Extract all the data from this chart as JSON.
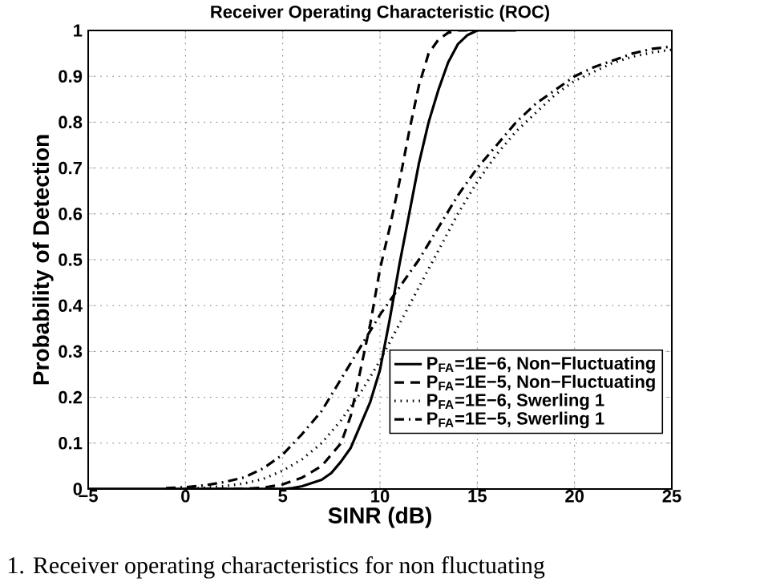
{
  "chart_data": {
    "type": "line",
    "title": "Receiver Operating Characteristic (ROC)",
    "xlabel": "SINR (dB)",
    "ylabel": "Probability of Detection",
    "xlim": [
      -5,
      25
    ],
    "xticks": [
      {
        "value": -5,
        "label": "−5"
      },
      0,
      5,
      10,
      15,
      20,
      25
    ],
    "ylim": [
      0,
      1
    ],
    "yticks": [
      0,
      0.1,
      0.2,
      0.3,
      0.4,
      0.5,
      0.6,
      0.7,
      0.8,
      0.9,
      1
    ],
    "grid": true,
    "legend": "bottom right",
    "annotations": [
      "1.   Receiver operating characteristics for non fluctuating"
    ],
    "series": [
      {
        "name": "P$_{FA}$=1E−6, Non−Fluctuating",
        "color": "#000000",
        "line_style": "solid",
        "x": [
          -5,
          0,
          5,
          5.5,
          6,
          7,
          7.5,
          8,
          8.5,
          9,
          9.5,
          10,
          10.5,
          11,
          11.5,
          12,
          12.5,
          13,
          13.5,
          14,
          14.5,
          15,
          16,
          17
        ],
        "values": [
          0,
          0,
          0,
          0.002,
          0.006,
          0.02,
          0.035,
          0.06,
          0.09,
          0.14,
          0.19,
          0.26,
          0.37,
          0.49,
          0.6,
          0.71,
          0.8,
          0.87,
          0.93,
          0.97,
          0.99,
          1,
          1,
          1
        ]
      },
      {
        "name": "P$_{FA}$=1E−5, Non−Fluctuating",
        "color": "#000000",
        "line_style": "dashed",
        "x": [
          0,
          2,
          3,
          4,
          5,
          6,
          7,
          8,
          8.5,
          9,
          9.5,
          10,
          10.5,
          11,
          11.5,
          12,
          12.5,
          13,
          13.5,
          14,
          15
        ],
        "values": [
          0,
          0,
          0,
          0.003,
          0.01,
          0.025,
          0.05,
          0.1,
          0.16,
          0.26,
          0.36,
          0.48,
          0.57,
          0.67,
          0.78,
          0.88,
          0.95,
          0.98,
          0.995,
          1,
          1
        ]
      },
      {
        "name": "P$_{FA}$=1E−6, Swerling 1",
        "color": "#000000",
        "line_style": "dotted",
        "x": [
          0,
          0.5,
          1,
          2,
          3,
          4,
          5,
          6,
          7,
          8,
          9,
          10,
          11,
          12,
          13,
          14,
          15,
          16,
          17,
          18,
          19,
          20,
          21,
          22,
          23,
          24,
          25
        ],
        "values": [
          0,
          0.001,
          0.003,
          0.006,
          0.012,
          0.022,
          0.04,
          0.065,
          0.1,
          0.15,
          0.21,
          0.28,
          0.36,
          0.44,
          0.52,
          0.6,
          0.67,
          0.73,
          0.78,
          0.82,
          0.86,
          0.89,
          0.91,
          0.93,
          0.943,
          0.952,
          0.958
        ]
      },
      {
        "name": "P$_{FA}$=1E−5, Swerling 1",
        "color": "#000000",
        "line_style": "dashdot",
        "x": [
          -1,
          0,
          1,
          2,
          3,
          4,
          5,
          6,
          7,
          8,
          9,
          10,
          11,
          12,
          13,
          14,
          15,
          16,
          17,
          18,
          19,
          20,
          21,
          22,
          23,
          24,
          25
        ],
        "values": [
          0.002,
          0.004,
          0.008,
          0.015,
          0.025,
          0.045,
          0.075,
          0.12,
          0.17,
          0.24,
          0.31,
          0.38,
          0.44,
          0.5,
          0.57,
          0.64,
          0.7,
          0.75,
          0.8,
          0.84,
          0.87,
          0.9,
          0.92,
          0.935,
          0.95,
          0.96,
          0.965
        ]
      }
    ]
  }
}
